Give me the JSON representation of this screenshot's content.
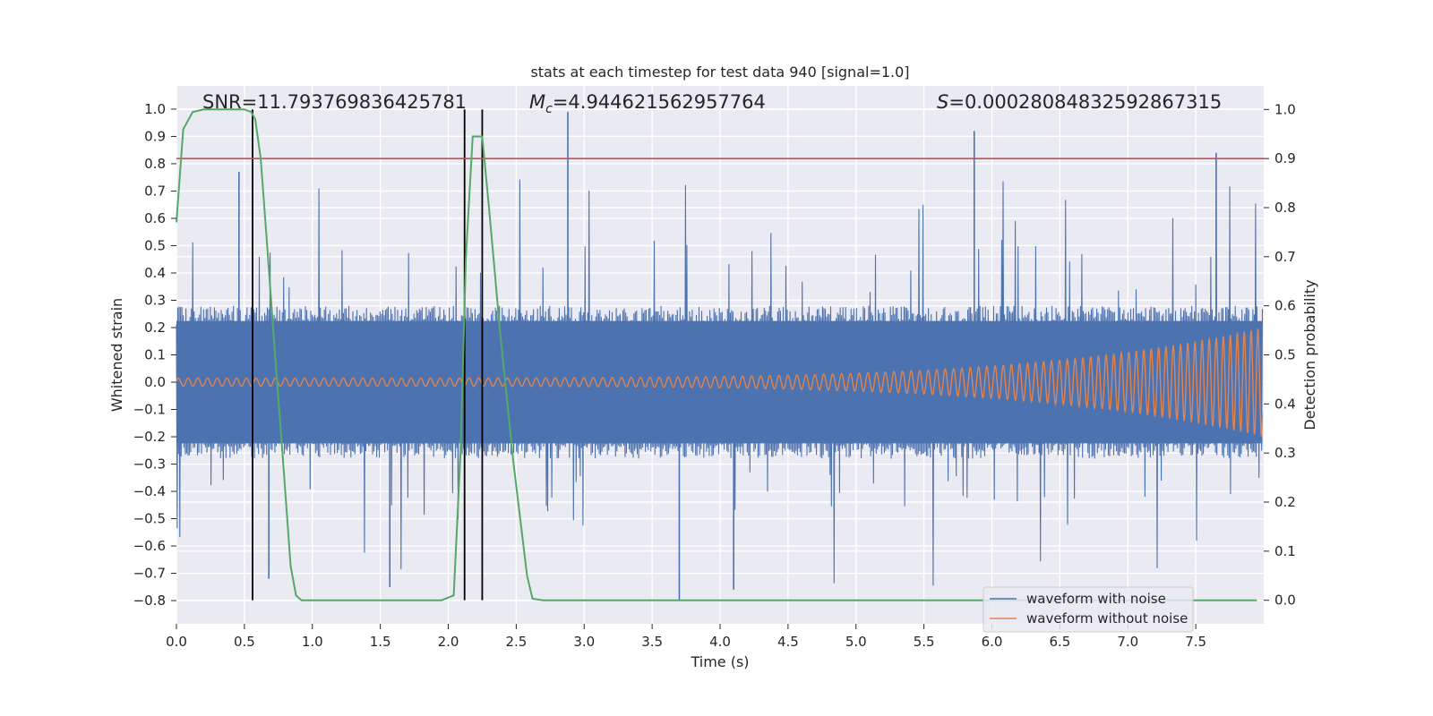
{
  "chart_data": {
    "type": "line",
    "title": "stats at each timestep for test data 940 [signal=1.0]",
    "xlabel": "Time (s)",
    "ylabel_left": "Whitened strain",
    "ylabel_right": "Detection probability",
    "xlim": [
      0.0,
      8.0
    ],
    "ylim_left": [
      -0.885,
      1.085
    ],
    "ylim_right": [
      -0.048,
      1.048
    ],
    "x_ticks": [
      "0.0",
      "0.5",
      "1.0",
      "1.5",
      "2.0",
      "2.5",
      "3.0",
      "3.5",
      "4.0",
      "4.5",
      "5.0",
      "5.5",
      "6.0",
      "6.5",
      "7.0",
      "7.5"
    ],
    "y_left_ticks": [
      "−0.8",
      "−0.7",
      "−0.6",
      "−0.5",
      "−0.4",
      "−0.3",
      "−0.2",
      "−0.1",
      "0.0",
      "0.1",
      "0.2",
      "0.3",
      "0.4",
      "0.5",
      "0.6",
      "0.7",
      "0.8",
      "0.9",
      "1.0"
    ],
    "y_right_ticks": [
      "0.0",
      "0.1",
      "0.2",
      "0.3",
      "0.4",
      "0.5",
      "0.6",
      "0.7",
      "0.8",
      "0.9",
      "1.0"
    ],
    "annotations": {
      "snr": "SNR=11.793769836425781",
      "mc_symbol": "M",
      "mc_sub": "c",
      "mc_value": "=4.944621562957764",
      "s_symbol": "S",
      "s_value": "=0.00028084832592867315"
    },
    "threshold_probability": 0.9,
    "vertical_lines_s": [
      0.56,
      2.12,
      2.25
    ],
    "detection_probability": {
      "name": "Detection probability",
      "x": [
        0.0,
        0.05,
        0.12,
        0.2,
        0.3,
        0.4,
        0.5,
        0.55,
        0.58,
        0.62,
        0.66,
        0.72,
        0.78,
        0.84,
        0.88,
        0.92,
        1.0,
        1.5,
        1.95,
        2.04,
        2.09,
        2.13,
        2.18,
        2.2,
        2.25,
        2.3,
        2.38,
        2.48,
        2.58,
        2.62,
        2.7,
        3.2,
        3.8,
        4.6,
        5.5,
        6.3,
        7.0,
        7.6,
        7.95
      ],
      "y": [
        0.77,
        0.96,
        0.995,
        1.0,
        1.0,
        1.0,
        1.0,
        0.995,
        0.98,
        0.9,
        0.75,
        0.52,
        0.3,
        0.07,
        0.01,
        0.0,
        0.0,
        0.0,
        0.0,
        0.01,
        0.3,
        0.7,
        0.945,
        0.945,
        0.945,
        0.8,
        0.55,
        0.28,
        0.05,
        0.003,
        0.0,
        0.0,
        0.0,
        0.0,
        0.0,
        0.0,
        0.0,
        0.0,
        0.0
      ]
    },
    "series": [
      {
        "name": "waveform with noise",
        "color": "#4c72b0",
        "band_abs_max": 0.28,
        "spike_peaks": [
          [
            0.46,
            0.77
          ],
          [
            2.88,
            0.99
          ],
          [
            5.87,
            0.92
          ],
          [
            7.65,
            0.84
          ],
          [
            3.7,
            -0.8
          ],
          [
            1.57,
            -0.75
          ],
          [
            4.1,
            -0.76
          ],
          [
            2.12,
            -0.74
          ],
          [
            0.68,
            -0.72
          ]
        ]
      },
      {
        "name": "waveform without noise",
        "color": "#dd8452",
        "amplitude_start": 0.015,
        "amplitude_end": 0.2
      }
    ],
    "probability_color": "#55a868",
    "threshold_color": "#c44e52",
    "vline_color": "#000000",
    "grid": true,
    "legend": "bottom-right"
  }
}
